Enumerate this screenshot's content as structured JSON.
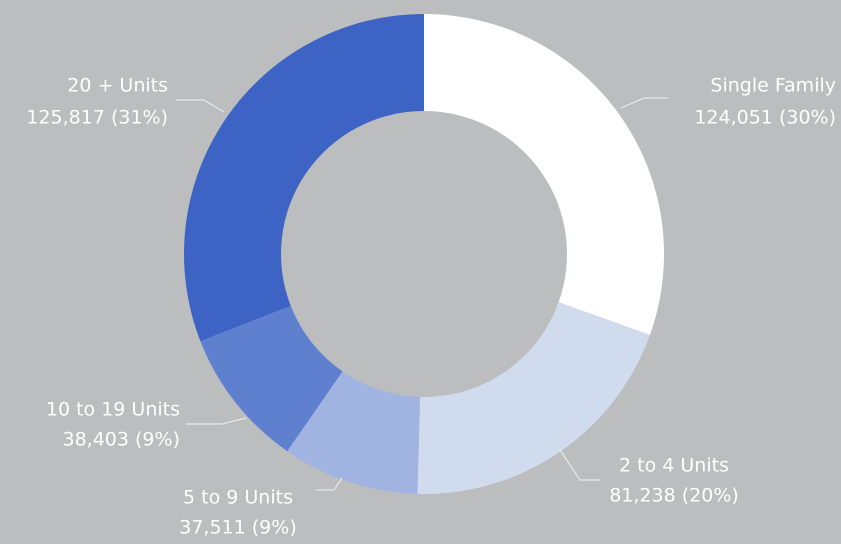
{
  "chart_data": {
    "type": "donut",
    "categories": [
      "Single Family",
      "2 to 4 Units",
      "5 to 9 Units",
      "10 to 19 Units",
      "20 + Units"
    ],
    "values": [
      124051,
      81238,
      37511,
      38403,
      125817
    ],
    "value_labels": [
      "124,051 (30%)",
      "81,238 (20%)",
      "37,511 (9%)",
      "38,403 (9%)",
      "125,817 (31%)"
    ],
    "colors": [
      "#ffffff",
      "#d0dcee",
      "#a0b3e1",
      "#5f80cf",
      "#3d64c4"
    ]
  }
}
